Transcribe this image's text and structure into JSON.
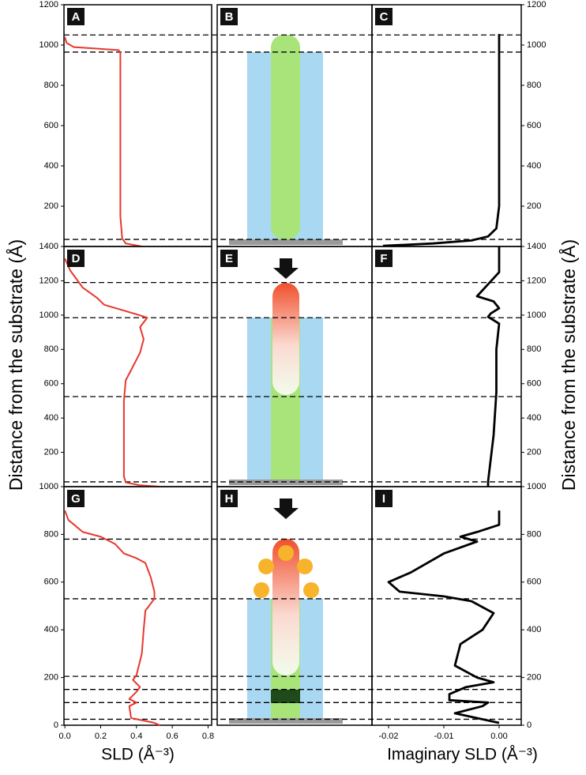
{
  "chart_data": [
    {
      "type": "line",
      "panel": "A",
      "xlim": [
        -0.005,
        0.82
      ],
      "ylim": [
        0,
        1200
      ],
      "yticks": [
        200,
        400,
        600,
        800,
        1000,
        1200
      ],
      "hlines": [
        1050,
        965,
        35
      ],
      "series": [
        {
          "color": "#e8372c",
          "x": [
            0.43,
            0.34,
            0.32,
            0.31,
            0.31,
            0.3,
            0.05,
            0.01,
            0.0
          ],
          "y": [
            0,
            15,
            40,
            150,
            960,
            975,
            990,
            1010,
            1040
          ]
        }
      ]
    },
    {
      "type": "line",
      "panel": "C",
      "ylabel": "Distance from the substrate (Å)",
      "xlim": [
        -0.023,
        0.004
      ],
      "ylim": [
        0,
        1200
      ],
      "yticks": [
        200,
        400,
        600,
        800,
        1000,
        1200
      ],
      "series": [
        {
          "color": "#000000",
          "x": [
            -0.021,
            -0.012,
            -0.005,
            -0.002,
            -0.0005,
            0.0,
            0.0
          ],
          "y": [
            3,
            15,
            30,
            50,
            90,
            200,
            1055
          ]
        }
      ]
    },
    {
      "type": "line",
      "panel": "D",
      "xlim": [
        -0.005,
        0.82
      ],
      "ylim": [
        0,
        1400
      ],
      "yticks": [
        200,
        400,
        600,
        800,
        1000,
        1200,
        1400
      ],
      "hlines": [
        1190,
        985,
        525,
        28
      ],
      "series": [
        {
          "color": "#e8372c",
          "x": [
            0.53,
            0.42,
            0.34,
            0.33,
            0.33,
            0.34,
            0.38,
            0.42,
            0.44,
            0.42,
            0.46,
            0.4,
            0.22,
            0.18,
            0.1,
            0.03,
            0.0
          ],
          "y": [
            0,
            8,
            25,
            60,
            500,
            620,
            700,
            780,
            860,
            930,
            985,
            1005,
            1060,
            1100,
            1160,
            1260,
            1330
          ]
        }
      ]
    },
    {
      "type": "line",
      "panel": "F",
      "xlim": [
        -0.023,
        0.004
      ],
      "ylim": [
        0,
        1400
      ],
      "yticks": [
        200,
        400,
        600,
        800,
        1000,
        1200,
        1400
      ],
      "series": [
        {
          "color": "#000000",
          "x": [
            -0.002,
            -0.002,
            -0.001,
            -0.0005,
            -0.0005,
            0.0,
            -0.002,
            -0.0015,
            0.0,
            -0.001,
            -0.004,
            -0.002,
            0.0,
            0.0
          ],
          "y": [
            0,
            30,
            300,
            550,
            800,
            950,
            990,
            1010,
            1040,
            1080,
            1110,
            1180,
            1250,
            1400
          ]
        }
      ]
    },
    {
      "type": "line",
      "panel": "G",
      "xlabel": "SLD (Å⁻³)",
      "xlim": [
        -0.005,
        0.82
      ],
      "ylim": [
        0,
        1000
      ],
      "yticks": [
        0,
        200,
        400,
        600,
        800,
        1000
      ],
      "xticks": [
        {
          "value": 0,
          "label": "0.0"
        },
        0.2,
        0.4,
        0.6,
        0.8
      ],
      "hlines": [
        780,
        530,
        205,
        150,
        95,
        25
      ],
      "series": [
        {
          "color": "#e8372c",
          "x": [
            0.53,
            0.5,
            0.37,
            0.36,
            0.4,
            0.36,
            0.4,
            0.42,
            0.38,
            0.4,
            0.43,
            0.44,
            0.45,
            0.5,
            0.5,
            0.48,
            0.45,
            0.4,
            0.33,
            0.28,
            0.2,
            0.1,
            0.02,
            0.0
          ],
          "y": [
            0,
            10,
            30,
            80,
            95,
            110,
            140,
            160,
            190,
            210,
            300,
            400,
            480,
            530,
            560,
            620,
            680,
            700,
            720,
            760,
            790,
            810,
            860,
            900
          ]
        }
      ]
    },
    {
      "type": "line",
      "panel": "I",
      "xlabel": "Imaginary SLD (Å⁻³)",
      "xlim": [
        -0.023,
        0.004
      ],
      "ylim": [
        0,
        1000
      ],
      "yticks": [
        0,
        200,
        400,
        600,
        800,
        1000
      ],
      "xticks": [
        -0.02,
        -0.01,
        {
          "value": 0,
          "label": "0.00"
        }
      ],
      "series": [
        {
          "color": "#000000",
          "x": [
            0.0,
            -0.002,
            -0.008,
            -0.003,
            -0.002,
            -0.009,
            -0.009,
            -0.006,
            -0.001,
            -0.004,
            -0.008,
            -0.007,
            -0.003,
            -0.001,
            -0.005,
            -0.01,
            -0.018,
            -0.02,
            -0.016,
            -0.01,
            -0.004,
            -0.007,
            -0.004,
            0.0,
            0.0
          ],
          "y": [
            10,
            20,
            50,
            80,
            95,
            105,
            130,
            160,
            180,
            200,
            250,
            340,
            400,
            470,
            520,
            540,
            560,
            600,
            640,
            720,
            770,
            790,
            810,
            840,
            900
          ]
        }
      ]
    }
  ],
  "schematics": [
    "B",
    "E",
    "H"
  ]
}
